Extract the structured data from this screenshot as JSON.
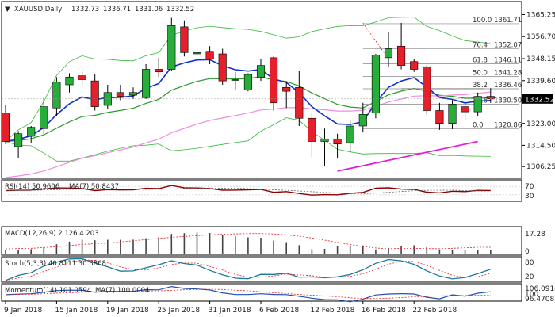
{
  "chart_data": {
    "type": "candlestick",
    "header": {
      "symbol_tf": "XAUUSD,Daily",
      "ohlc": [
        "1332.73",
        "1336.71",
        "1331.06",
        "1332.52"
      ]
    },
    "colors": {
      "up": "#27ae3a",
      "down": "#e5202a",
      "ma_fast": "#1030d0",
      "ma_mid": "#2a9a2a",
      "bollinger": "#3bb83b",
      "ma_slow": "#f08ce0",
      "trendline": "#e020d8",
      "fib_line": "#888888",
      "ma_crossline": "#000000"
    },
    "price_axis": {
      "min": 1302,
      "max": 1370,
      "ticks": [
        "1365.25",
        "1356.70",
        "1348.15",
        "1339.60",
        "1323.00",
        "1314.50",
        "1306.25"
      ],
      "current_price_label": "1332.52",
      "current_price": 1332.52
    },
    "candles": [
      {
        "o": 1327.0,
        "h": 1330.0,
        "l": 1315.0,
        "c": 1316.0
      },
      {
        "o": 1314.0,
        "h": 1320.0,
        "l": 1309.5,
        "c": 1319.0
      },
      {
        "o": 1318.0,
        "h": 1322.0,
        "l": 1315.5,
        "c": 1321.5
      },
      {
        "o": 1321.0,
        "h": 1333.0,
        "l": 1319.0,
        "c": 1329.5
      },
      {
        "o": 1329.0,
        "h": 1341.0,
        "l": 1326.0,
        "c": 1339.0
      },
      {
        "o": 1338.0,
        "h": 1342.5,
        "l": 1335.0,
        "c": 1341.0
      },
      {
        "o": 1341.5,
        "h": 1343.5,
        "l": 1338.0,
        "c": 1340.0
      },
      {
        "o": 1339.5,
        "h": 1342.0,
        "l": 1328.0,
        "c": 1329.5
      },
      {
        "o": 1330.0,
        "h": 1338.0,
        "l": 1328.5,
        "c": 1335.0
      },
      {
        "o": 1335.0,
        "h": 1338.0,
        "l": 1332.0,
        "c": 1333.5
      },
      {
        "o": 1334.0,
        "h": 1337.0,
        "l": 1332.5,
        "c": 1335.0
      },
      {
        "o": 1333.0,
        "h": 1346.0,
        "l": 1332.5,
        "c": 1344.0
      },
      {
        "o": 1344.0,
        "h": 1348.5,
        "l": 1341.0,
        "c": 1343.0
      },
      {
        "o": 1344.0,
        "h": 1364.0,
        "l": 1343.5,
        "c": 1361.0
      },
      {
        "o": 1360.5,
        "h": 1363.0,
        "l": 1349.0,
        "c": 1350.5
      },
      {
        "o": 1350.0,
        "h": 1366.0,
        "l": 1342.0,
        "c": 1350.5
      },
      {
        "o": 1351.0,
        "h": 1353.0,
        "l": 1346.0,
        "c": 1348.0
      },
      {
        "o": 1350.0,
        "h": 1352.0,
        "l": 1338.0,
        "c": 1339.5
      },
      {
        "o": 1340.0,
        "h": 1343.0,
        "l": 1336.0,
        "c": 1340.0
      },
      {
        "o": 1336.0,
        "h": 1342.5,
        "l": 1335.5,
        "c": 1342.0
      },
      {
        "o": 1341.0,
        "h": 1348.0,
        "l": 1339.5,
        "c": 1345.5
      },
      {
        "o": 1348.5,
        "h": 1349.0,
        "l": 1328.0,
        "c": 1331.0
      },
      {
        "o": 1337.0,
        "h": 1339.0,
        "l": 1329.0,
        "c": 1335.5
      },
      {
        "o": 1337.0,
        "h": 1343.5,
        "l": 1322.0,
        "c": 1325.0
      },
      {
        "o": 1325.0,
        "h": 1327.0,
        "l": 1310.0,
        "c": 1316.0
      },
      {
        "o": 1316.0,
        "h": 1321.0,
        "l": 1306.5,
        "c": 1317.0
      },
      {
        "o": 1317.0,
        "h": 1319.0,
        "l": 1309.5,
        "c": 1315.0
      },
      {
        "o": 1315.5,
        "h": 1324.0,
        "l": 1312.0,
        "c": 1322.0
      },
      {
        "o": 1322.0,
        "h": 1331.0,
        "l": 1319.5,
        "c": 1326.5
      },
      {
        "o": 1327.0,
        "h": 1350.0,
        "l": 1325.0,
        "c": 1349.5
      },
      {
        "o": 1348.5,
        "h": 1358.5,
        "l": 1345.0,
        "c": 1352.0
      },
      {
        "o": 1353.0,
        "h": 1362.0,
        "l": 1344.0,
        "c": 1345.5
      },
      {
        "o": 1347.0,
        "h": 1348.0,
        "l": 1343.0,
        "c": 1344.0
      },
      {
        "o": 1345.0,
        "h": 1345.5,
        "l": 1326.5,
        "c": 1328.0
      },
      {
        "o": 1328.0,
        "h": 1331.0,
        "l": 1320.5,
        "c": 1323.0
      },
      {
        "o": 1323.0,
        "h": 1332.0,
        "l": 1320.8,
        "c": 1330.5
      },
      {
        "o": 1329.5,
        "h": 1331.5,
        "l": 1324.5,
        "c": 1327.5
      },
      {
        "o": 1327.5,
        "h": 1335.0,
        "l": 1326.0,
        "c": 1333.5
      },
      {
        "o": 1333.5,
        "h": 1336.7,
        "l": 1331.0,
        "c": 1332.5
      }
    ],
    "fibonacci": [
      {
        "label": "100.0",
        "value": "1361.71",
        "price": 1361.71
      },
      {
        "label": "76.4",
        "value": "1352.07",
        "price": 1352.07
      },
      {
        "label": "61.8",
        "value": "1346.11",
        "price": 1346.11
      },
      {
        "label": "50.0",
        "value": "1341.28",
        "price": 1341.28
      },
      {
        "label": "38.2",
        "value": "1336.46",
        "price": 1336.46
      },
      {
        "label": "23.6",
        "value": "1330.50",
        "price": 1330.5
      },
      {
        "label": "0.0",
        "value": "1320.86",
        "price": 1320.86
      }
    ],
    "indicators": {
      "rsi": {
        "label": "RSI(14) 50.9606",
        "ma_label": "MA(7) 50.8437",
        "axis": [
          "70",
          "30"
        ]
      },
      "macd": {
        "label": "MACD(12,26,9) 2.126 4.203",
        "axis": [
          "17.28",
          "0"
        ]
      },
      "stoch": {
        "label": "Stoch(5,3,3) 40.8111 30.3868",
        "axis": [
          "80",
          "20"
        ]
      },
      "momentum": {
        "label": "Momentum(14) 101.0594",
        "ma_label": "MA(7) 100.0004",
        "axis": [
          "106.0914",
          "100",
          "96.4708"
        ]
      }
    },
    "x_labels": [
      "9 Jan 2018",
      "15 Jan 2018",
      "19 Jan 2018",
      "25 Jan 2018",
      "31 Jan 2018",
      "6 Feb 2018",
      "12 Feb 2018",
      "16 Feb 2018",
      "22 Feb 2018"
    ]
  }
}
